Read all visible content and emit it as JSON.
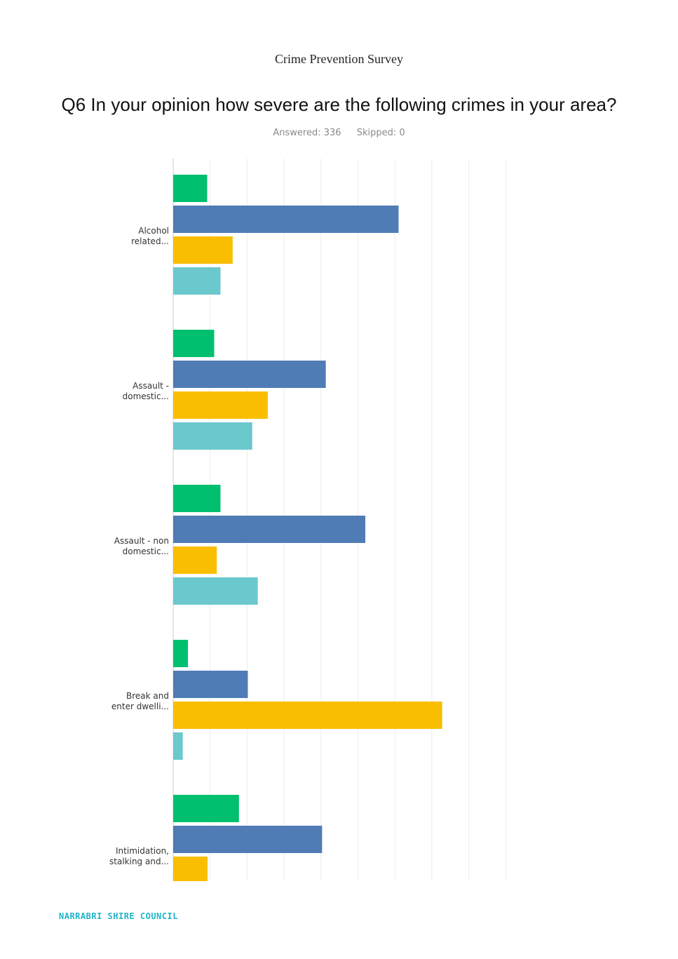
{
  "header": {
    "survey_name": "Crime Prevention Survey",
    "question": "Q6 In your opinion how severe are the following crimes in your area?",
    "answered": "Answered: 336",
    "skipped": "Skipped: 0"
  },
  "footer": {
    "logo_text": "NARRABRI SHIRE COUNCIL"
  },
  "chart_data": {
    "type": "bar",
    "orientation": "horizontal",
    "title": "",
    "xlabel": "",
    "ylabel": "",
    "grid": true,
    "xlim": [
      0,
      90
    ],
    "categories": [
      [
        "Alcohol",
        "related..."
      ],
      [
        "Assault -",
        "domestic..."
      ],
      [
        "Assault - non",
        "domestic..."
      ],
      [
        "Break and",
        "enter dwelli..."
      ],
      [
        "Intimidation,",
        "stalking and..."
      ]
    ],
    "series": [
      {
        "color": "#00bf6f",
        "values": [
          9.2,
          11.1,
          12.8,
          4.0,
          17.8
        ]
      },
      {
        "color": "#507cb6",
        "values": [
          61.0,
          41.3,
          52.0,
          20.2,
          40.3
        ]
      },
      {
        "color": "#f9be00",
        "values": [
          16.1,
          25.6,
          11.8,
          72.8,
          9.3
        ]
      },
      {
        "color": "#6bc8cd",
        "values": [
          12.8,
          21.4,
          22.9,
          2.6,
          null
        ]
      }
    ]
  }
}
